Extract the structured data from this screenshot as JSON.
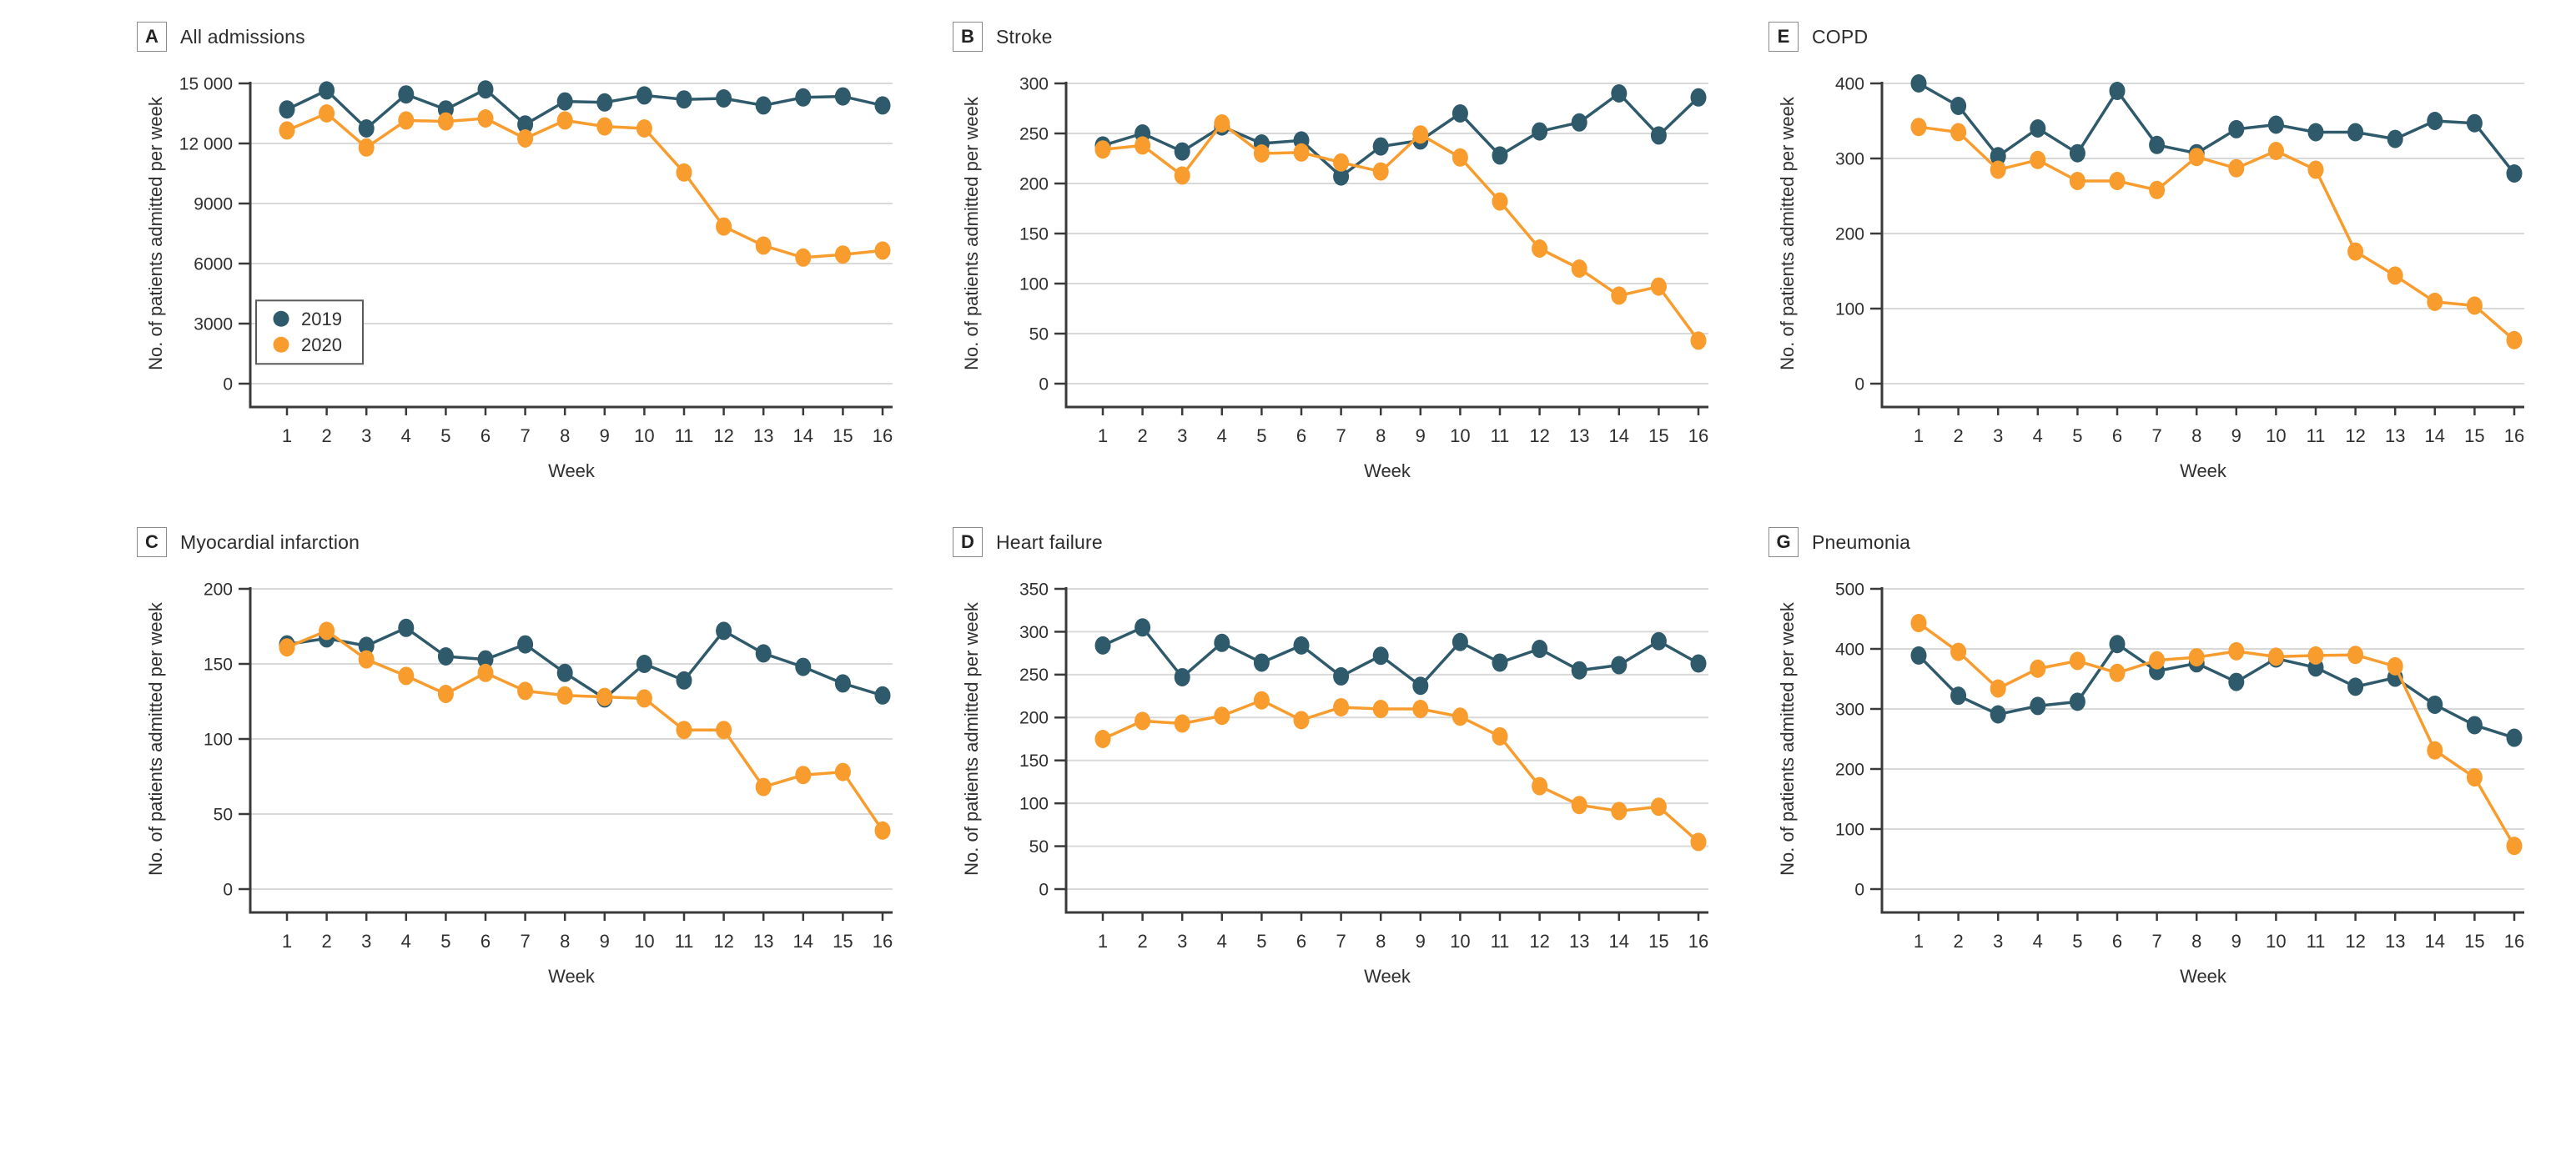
{
  "figure": {
    "background": "#ffffff",
    "axis_color": "#3a3a3a",
    "grid_color": "#d9d9d9",
    "text_color": "#2f2f2f",
    "series_colors": {
      "y2019": "#2E5A6B",
      "y2020": "#F89C2D"
    },
    "legend": {
      "items": [
        {
          "label": "2019",
          "color": "#2E5A6B"
        },
        {
          "label": "2020",
          "color": "#F89C2D"
        }
      ],
      "position": "inside-lower-left-panel-A"
    }
  },
  "chart_data": [
    {
      "type": "line",
      "panel_label": "A",
      "title": "All admissions",
      "xlabel": "Week",
      "ylabel": "No. of patients admitted per week",
      "x": [
        1,
        2,
        3,
        4,
        5,
        6,
        7,
        8,
        9,
        10,
        11,
        12,
        13,
        14,
        15,
        16
      ],
      "ylim": [
        0,
        15000
      ],
      "yticks": [
        0,
        3000,
        6000,
        9000,
        12000,
        15000
      ],
      "ytick_labels": [
        "0",
        "3000",
        "6000",
        "9000",
        "12 000",
        "15 000"
      ],
      "grid": true,
      "legend": true,
      "series": [
        {
          "name": "2019",
          "color": "#2E5A6B",
          "values": [
            13700,
            14650,
            12750,
            14450,
            13700,
            14700,
            12950,
            14100,
            14050,
            14400,
            14200,
            14250,
            13900,
            14300,
            14350,
            13900
          ]
        },
        {
          "name": "2020",
          "color": "#F89C2D",
          "values": [
            12650,
            13500,
            11800,
            13150,
            13100,
            13250,
            12250,
            13150,
            12850,
            12750,
            10550,
            7850,
            6900,
            6300,
            6450,
            6650
          ]
        }
      ]
    },
    {
      "type": "line",
      "panel_label": "B",
      "title": "Stroke",
      "xlabel": "Week",
      "ylabel": "No. of patients admitted per week",
      "x": [
        1,
        2,
        3,
        4,
        5,
        6,
        7,
        8,
        9,
        10,
        11,
        12,
        13,
        14,
        15,
        16
      ],
      "ylim": [
        0,
        300
      ],
      "yticks": [
        0,
        50,
        100,
        150,
        200,
        250,
        300
      ],
      "grid": true,
      "legend": false,
      "series": [
        {
          "name": "2019",
          "color": "#2E5A6B",
          "values": [
            238,
            250,
            232,
            257,
            240,
            243,
            207,
            237,
            243,
            270,
            228,
            252,
            261,
            290,
            248,
            286
          ]
        },
        {
          "name": "2020",
          "color": "#F89C2D",
          "values": [
            234,
            238,
            208,
            260,
            230,
            231,
            221,
            212,
            249,
            226,
            182,
            135,
            115,
            88,
            97,
            43
          ]
        }
      ]
    },
    {
      "type": "line",
      "panel_label": "E",
      "title": "COPD",
      "xlabel": "Week",
      "ylabel": "No. of patients admitted per week",
      "x": [
        1,
        2,
        3,
        4,
        5,
        6,
        7,
        8,
        9,
        10,
        11,
        12,
        13,
        14,
        15,
        16
      ],
      "ylim": [
        0,
        400
      ],
      "yticks": [
        0,
        100,
        200,
        300,
        400
      ],
      "grid": true,
      "legend": false,
      "series": [
        {
          "name": "2019",
          "color": "#2E5A6B",
          "values": [
            400,
            370,
            303,
            340,
            307,
            390,
            318,
            307,
            339,
            345,
            335,
            335,
            326,
            350,
            347,
            280
          ]
        },
        {
          "name": "2020",
          "color": "#F89C2D",
          "values": [
            342,
            335,
            285,
            298,
            270,
            270,
            258,
            302,
            287,
            310,
            285,
            176,
            144,
            109,
            104,
            58
          ]
        }
      ]
    },
    {
      "type": "line",
      "panel_label": "C",
      "title": "Myocardial infarction",
      "xlabel": "Week",
      "ylabel": "No. of patients admitted per week",
      "x": [
        1,
        2,
        3,
        4,
        5,
        6,
        7,
        8,
        9,
        10,
        11,
        12,
        13,
        14,
        15,
        16
      ],
      "ylim": [
        0,
        200
      ],
      "yticks": [
        0,
        50,
        100,
        150,
        200
      ],
      "grid": true,
      "legend": false,
      "series": [
        {
          "name": "2019",
          "color": "#2E5A6B",
          "values": [
            163,
            167,
            162,
            174,
            155,
            153,
            163,
            144,
            127,
            150,
            139,
            172,
            157,
            148,
            137,
            129
          ]
        },
        {
          "name": "2020",
          "color": "#F89C2D",
          "values": [
            161,
            172,
            153,
            142,
            130,
            144,
            132,
            129,
            128,
            127,
            106,
            106,
            68,
            76,
            78,
            39
          ]
        }
      ]
    },
    {
      "type": "line",
      "panel_label": "D",
      "title": "Heart failure",
      "xlabel": "Week",
      "ylabel": "No. of patients admitted per week",
      "x": [
        1,
        2,
        3,
        4,
        5,
        6,
        7,
        8,
        9,
        10,
        11,
        12,
        13,
        14,
        15,
        16
      ],
      "ylim": [
        0,
        350
      ],
      "yticks": [
        0,
        50,
        100,
        150,
        200,
        250,
        300,
        350
      ],
      "grid": true,
      "legend": false,
      "series": [
        {
          "name": "2019",
          "color": "#2E5A6B",
          "values": [
            284,
            305,
            247,
            287,
            264,
            284,
            248,
            272,
            237,
            288,
            264,
            280,
            255,
            261,
            289,
            263
          ]
        },
        {
          "name": "2020",
          "color": "#F89C2D",
          "values": [
            175,
            196,
            193,
            202,
            220,
            197,
            212,
            210,
            210,
            201,
            178,
            120,
            98,
            91,
            96,
            55
          ]
        }
      ]
    },
    {
      "type": "line",
      "panel_label": "G",
      "title": "Pneumonia",
      "xlabel": "Week",
      "ylabel": "No. of patients admitted per week",
      "x": [
        1,
        2,
        3,
        4,
        5,
        6,
        7,
        8,
        9,
        10,
        11,
        12,
        13,
        14,
        15,
        16
      ],
      "ylim": [
        0,
        500
      ],
      "yticks": [
        0,
        100,
        200,
        300,
        400,
        500
      ],
      "grid": true,
      "legend": false,
      "series": [
        {
          "name": "2019",
          "color": "#2E5A6B",
          "values": [
            389,
            322,
            291,
            305,
            312,
            408,
            363,
            376,
            345,
            384,
            369,
            337,
            352,
            307,
            273,
            252
          ]
        },
        {
          "name": "2020",
          "color": "#F89C2D",
          "values": [
            443,
            395,
            334,
            367,
            380,
            360,
            381,
            386,
            396,
            387,
            389,
            390,
            371,
            231,
            186,
            72
          ]
        }
      ]
    }
  ]
}
